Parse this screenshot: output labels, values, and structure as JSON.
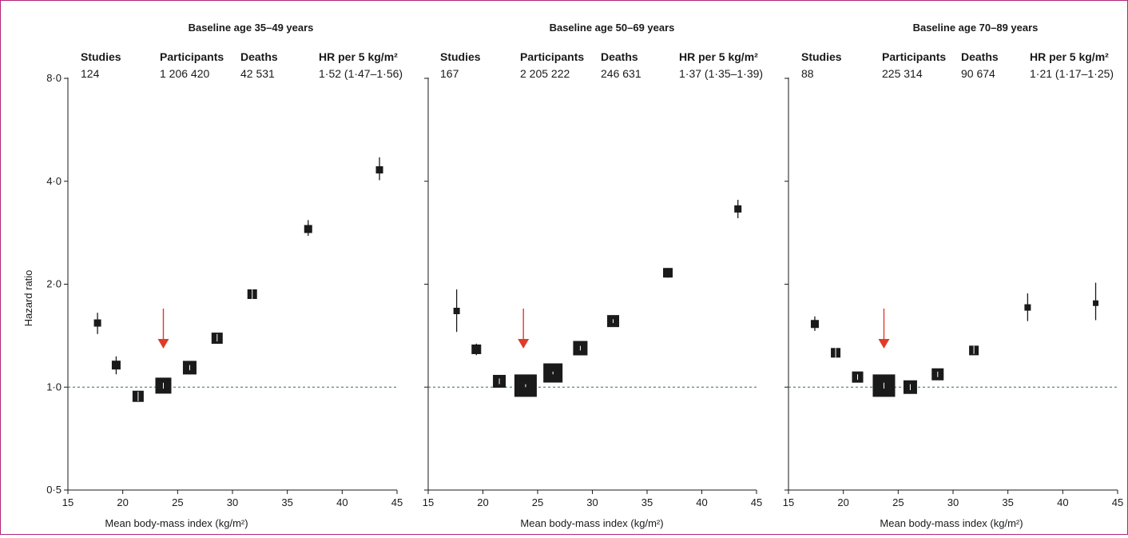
{
  "figure": {
    "y_axis_label": "Hazard ratio",
    "colors": {
      "frame": "#b0247a",
      "marker": "#1a1a1a",
      "reference_line": "#2f6b6b",
      "arrow": "#e03a2a"
    }
  },
  "headers": {
    "studies": "Studies",
    "participants": "Participants",
    "deaths": "Deaths",
    "hr": "HR per 5 kg/m²"
  },
  "chart_data": [
    {
      "type": "scatter",
      "title": "Baseline age 35–49 years",
      "xlabel": "Mean body-mass index (kg/m²)",
      "ylabel": "Hazard ratio",
      "xlim": [
        15,
        45
      ],
      "ylim": [
        0.5,
        8.0
      ],
      "y_scale": "log",
      "x_ticks": [
        "15",
        "20",
        "25",
        "30",
        "35",
        "40",
        "45"
      ],
      "y_ticks": [
        "0·5",
        "1·0",
        "2·0",
        "4·0",
        "8·0"
      ],
      "reference_line": 1.0,
      "arrow_at_bmi": 23.7,
      "summary": {
        "studies": "124",
        "participants": "1 206 420",
        "deaths": "42 531",
        "hr": "1·52 (1·47–1·56)"
      },
      "series": [
        {
          "x": [
            17.7,
            19.4,
            21.4,
            23.7,
            26.1,
            28.6,
            31.8,
            36.9,
            43.4
          ],
          "y": [
            1.54,
            1.16,
            0.94,
            1.01,
            1.14,
            1.39,
            1.87,
            2.9,
            4.32
          ],
          "lower": [
            1.43,
            1.09,
            0.91,
            0.99,
            1.12,
            1.36,
            1.81,
            2.77,
            4.03
          ],
          "upper": [
            1.65,
            1.23,
            0.97,
            1.03,
            1.16,
            1.43,
            1.93,
            3.08,
            4.7
          ],
          "weight": [
            0.5,
            0.7,
            1.0,
            1.6,
            1.3,
            1.0,
            0.8,
            0.6,
            0.5
          ]
        }
      ]
    },
    {
      "type": "scatter",
      "title": "Baseline age 50–69 years",
      "xlabel": "Mean body-mass index (kg/m²)",
      "ylabel": "",
      "xlim": [
        15,
        45
      ],
      "ylim": [
        0.5,
        8.0
      ],
      "y_scale": "log",
      "x_ticks": [
        "15",
        "20",
        "25",
        "30",
        "35",
        "40",
        "45"
      ],
      "y_ticks": [
        "0·5",
        "1·0",
        "2·0",
        "4·0",
        "8·0"
      ],
      "reference_line": 1.0,
      "arrow_at_bmi": 23.7,
      "summary": {
        "studies": "167",
        "participants": "2 205 222",
        "deaths": "246 631",
        "hr": "1·37 (1·35–1·39)"
      },
      "series": [
        {
          "x": [
            17.6,
            19.4,
            21.5,
            23.9,
            26.4,
            28.9,
            31.9,
            36.9,
            43.3
          ],
          "y": [
            1.67,
            1.29,
            1.04,
            1.01,
            1.1,
            1.3,
            1.56,
            2.16,
            3.32
          ],
          "lower": [
            1.45,
            1.24,
            1.02,
            1.0,
            1.09,
            1.28,
            1.54,
            2.09,
            3.12
          ],
          "upper": [
            1.93,
            1.34,
            1.06,
            1.02,
            1.11,
            1.32,
            1.58,
            2.23,
            3.53
          ],
          "weight": [
            0.4,
            0.8,
            1.2,
            2.4,
            2.0,
            1.4,
            1.1,
            0.8,
            0.5
          ]
        }
      ]
    },
    {
      "type": "scatter",
      "title": "Baseline age 70–89 years",
      "xlabel": "Mean body-mass index (kg/m²)",
      "ylabel": "",
      "xlim": [
        15,
        45
      ],
      "ylim": [
        0.5,
        8.0
      ],
      "y_scale": "log",
      "x_ticks": [
        "15",
        "20",
        "25",
        "30",
        "35",
        "40",
        "45"
      ],
      "y_ticks": [
        "0·5",
        "1·0",
        "2·0",
        "4·0",
        "8·0"
      ],
      "reference_line": 1.0,
      "arrow_at_bmi": 23.7,
      "summary": {
        "studies": "88",
        "participants": "225 314",
        "deaths": "90 674",
        "hr": "1·21 (1·17–1·25)"
      },
      "series": [
        {
          "x": [
            17.4,
            19.3,
            21.3,
            23.7,
            26.1,
            28.6,
            31.9,
            36.8,
            43.0
          ],
          "y": [
            1.53,
            1.26,
            1.07,
            1.01,
            1.0,
            1.09,
            1.28,
            1.71,
            1.76
          ],
          "lower": [
            1.46,
            1.22,
            1.05,
            0.99,
            0.98,
            1.07,
            1.25,
            1.56,
            1.57
          ],
          "upper": [
            1.61,
            1.3,
            1.09,
            1.03,
            1.02,
            1.11,
            1.32,
            1.88,
            2.02
          ],
          "weight": [
            0.6,
            0.8,
            1.0,
            2.4,
            1.3,
            1.1,
            0.8,
            0.4,
            0.3
          ]
        }
      ]
    }
  ]
}
